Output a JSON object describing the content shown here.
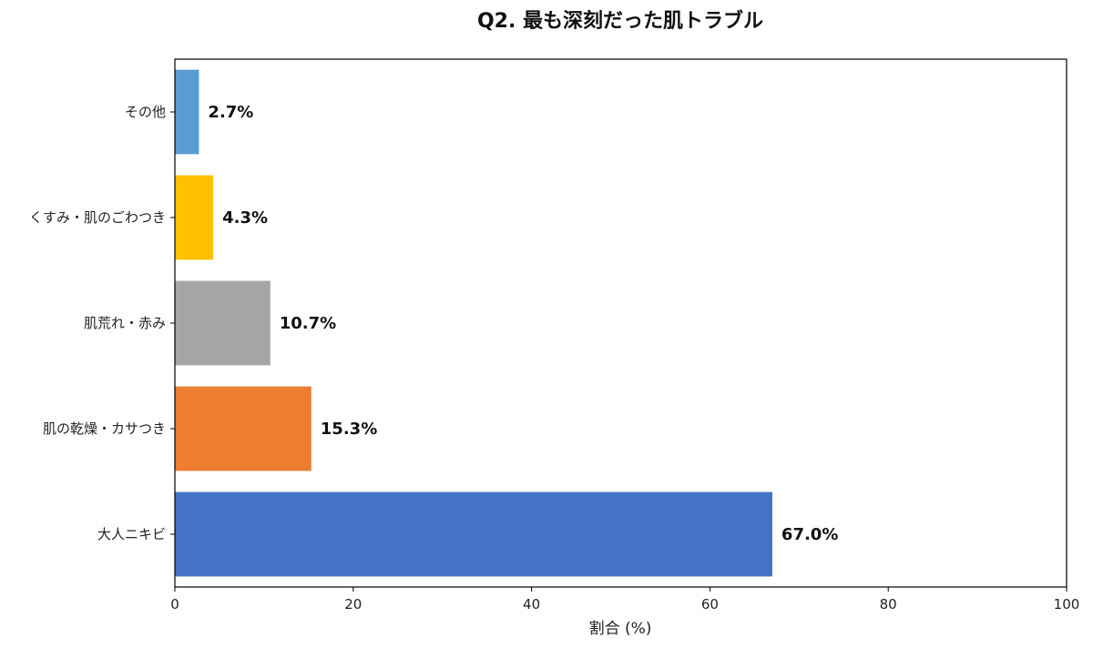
{
  "chart_data": {
    "type": "bar",
    "orientation": "horizontal",
    "title": "Q2. 最も深刻だった肌トラブル",
    "xlabel": "割合 (%)",
    "ylabel": "",
    "xlim": [
      0,
      100
    ],
    "xticks": [
      "0",
      "20",
      "40",
      "60",
      "80",
      "100"
    ],
    "categories": [
      "大人ニキビ",
      "肌の乾燥・カサつき",
      "肌荒れ・赤み",
      "くすみ・肌のごわつき",
      "その他"
    ],
    "values": [
      67.0,
      15.3,
      10.7,
      4.3,
      2.7
    ],
    "value_labels": [
      "67.0%",
      "15.3%",
      "10.7%",
      "4.3%",
      "2.7%"
    ],
    "colors": [
      "#4472C4",
      "#ED7D31",
      "#A5A5A5",
      "#FFC000",
      "#5B9BD5"
    ],
    "grid": false,
    "legend": "none"
  }
}
